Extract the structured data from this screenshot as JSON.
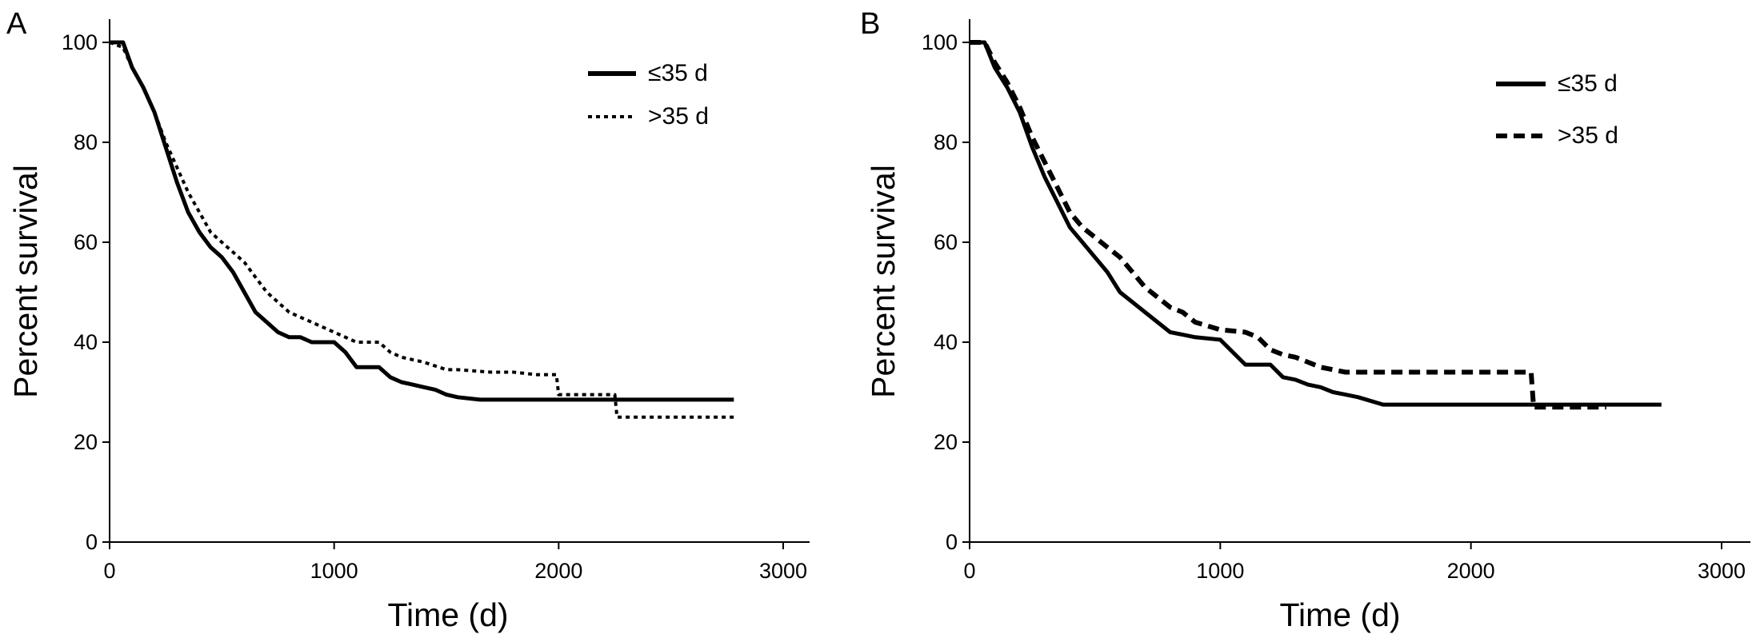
{
  "chart_data": [
    {
      "panel_label": "A",
      "type": "line",
      "xlabel": "Time (d)",
      "ylabel": "Percent survival",
      "xlim": [
        0,
        3000
      ],
      "ylim": [
        0,
        100
      ],
      "xticks": [
        0,
        1000,
        2000,
        3000
      ],
      "yticks": [
        0,
        20,
        40,
        60,
        80,
        100
      ],
      "grid": false,
      "legend_position": "top-right",
      "series": [
        {
          "name": "≤35 d",
          "style": "solid",
          "color": "#000000",
          "x": [
            0,
            60,
            100,
            150,
            200,
            250,
            300,
            350,
            400,
            450,
            500,
            550,
            600,
            650,
            700,
            750,
            800,
            850,
            900,
            1000,
            1050,
            1100,
            1150,
            1200,
            1250,
            1300,
            1350,
            1400,
            1450,
            1500,
            1550,
            1650,
            2000,
            2250,
            2780
          ],
          "y": [
            100,
            100,
            95,
            91,
            86,
            79,
            72,
            66,
            62,
            59,
            57,
            54,
            50,
            46,
            44,
            42,
            41,
            41,
            40,
            40,
            38,
            35,
            35,
            35,
            33,
            32,
            31.5,
            31,
            30.5,
            29.5,
            29,
            28.5,
            28.5,
            28.5,
            28.5
          ]
        },
        {
          "name": ">35 d",
          "style": "dotted",
          "color": "#000000",
          "x": [
            0,
            60,
            100,
            150,
            200,
            250,
            300,
            350,
            400,
            450,
            500,
            550,
            600,
            650,
            700,
            750,
            800,
            850,
            900,
            1000,
            1100,
            1200,
            1250,
            1300,
            1350,
            1400,
            1500,
            1550,
            1700,
            1800,
            1900,
            1990,
            2000,
            2250,
            2260,
            2780
          ],
          "y": [
            100,
            99,
            95,
            91,
            86,
            80,
            75,
            70,
            66,
            62,
            60,
            58,
            56,
            53,
            50,
            48,
            46,
            45,
            44,
            42,
            40,
            40,
            38,
            37,
            36.5,
            36,
            34.5,
            34.5,
            34,
            34,
            33.5,
            33.5,
            29.5,
            29.5,
            25,
            25
          ]
        }
      ]
    },
    {
      "panel_label": "B",
      "type": "line",
      "xlabel": "Time (d)",
      "ylabel": "Percent survival",
      "xlim": [
        0,
        3000
      ],
      "ylim": [
        0,
        100
      ],
      "xticks": [
        0,
        1000,
        2000,
        3000
      ],
      "yticks": [
        0,
        20,
        40,
        60,
        80,
        100
      ],
      "grid": false,
      "legend_position": "top-right",
      "series": [
        {
          "name": "≤35 d",
          "style": "solid",
          "color": "#000000",
          "x": [
            0,
            60,
            100,
            150,
            200,
            250,
            300,
            350,
            400,
            450,
            500,
            550,
            600,
            650,
            700,
            750,
            800,
            850,
            900,
            1000,
            1050,
            1100,
            1150,
            1200,
            1250,
            1300,
            1350,
            1400,
            1450,
            1500,
            1550,
            1650,
            2000,
            2250,
            2760
          ],
          "y": [
            100,
            100,
            95,
            91,
            86,
            79,
            73,
            68,
            63,
            60,
            57,
            54,
            50,
            48,
            46,
            44,
            42,
            41.5,
            41,
            40.5,
            38,
            35.5,
            35.5,
            35.5,
            33,
            32.5,
            31.5,
            31,
            30,
            29.5,
            29,
            27.5,
            27.5,
            27.5,
            27.5
          ]
        },
        {
          "name": ">35 d",
          "style": "dashed",
          "color": "#000000",
          "x": [
            0,
            60,
            100,
            150,
            200,
            250,
            300,
            350,
            400,
            450,
            500,
            550,
            600,
            650,
            700,
            750,
            800,
            850,
            900,
            1000,
            1100,
            1150,
            1200,
            1250,
            1300,
            1350,
            1400,
            1450,
            1500,
            1600,
            1700,
            1800,
            1900,
            2000,
            2100,
            2200,
            2240,
            2250,
            2540
          ],
          "y": [
            100,
            100,
            96,
            92,
            87,
            81,
            76,
            71,
            66,
            63,
            61,
            59,
            57,
            54,
            51,
            49,
            47,
            46,
            44,
            42.5,
            42,
            41,
            38.5,
            37.5,
            37,
            36,
            35,
            34.5,
            34,
            34,
            34,
            34,
            34,
            34,
            34,
            34,
            34,
            27,
            27
          ]
        }
      ]
    }
  ]
}
